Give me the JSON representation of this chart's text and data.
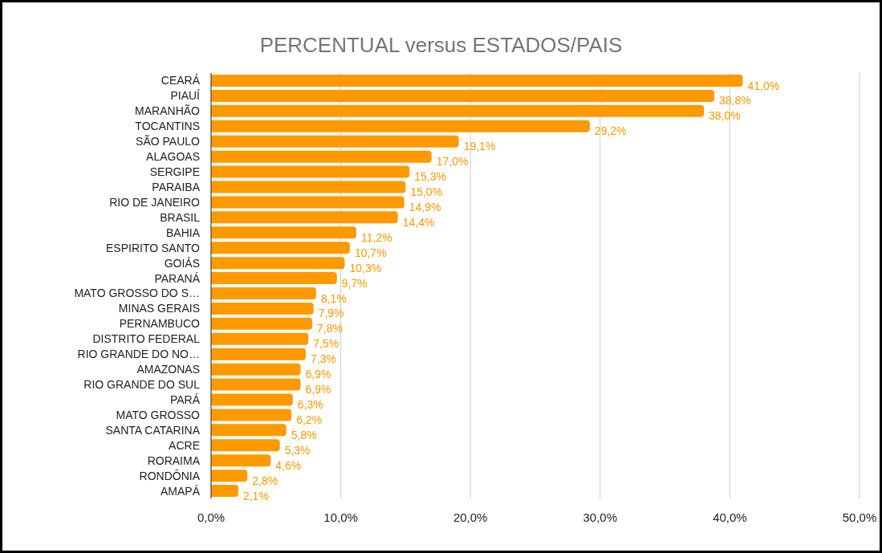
{
  "chart_data": {
    "type": "bar",
    "orientation": "horizontal",
    "title": "PERCENTUAL versus ESTADOS/PAIS",
    "categories": [
      "CEARÁ",
      "PIAUÍ",
      "MARANHÃO",
      "TOCANTINS",
      "SÃO PAULO",
      "ALAGOAS",
      "SERGIPE",
      "PARAIBA",
      "RIO DE JANEIRO",
      "BRASIL",
      "BAHIA",
      "ESPIRITO SANTO",
      "GOIÁS",
      "PARANÁ",
      "MATO GROSSO DO S…",
      "MINAS GERAIS",
      "PERNAMBUCO",
      "DISTRITO FEDERAL",
      "RIO GRANDE DO NO…",
      "AMAZONAS",
      "RIO GRANDE DO SUL",
      "PARÁ",
      "MATO GROSSO",
      "SANTA CATARINA",
      "ACRE",
      "RORAIMA",
      "RONDÔNIA",
      "AMAPÁ"
    ],
    "values": [
      41.0,
      38.8,
      38.0,
      29.2,
      19.1,
      17.0,
      15.3,
      15.0,
      14.9,
      14.4,
      11.2,
      10.7,
      10.3,
      9.7,
      8.1,
      7.9,
      7.8,
      7.5,
      7.3,
      6.9,
      6.9,
      6.3,
      6.2,
      5.8,
      5.3,
      4.6,
      2.8,
      2.1
    ],
    "value_labels": [
      "41,0%",
      "38,8%",
      "38,0%",
      "29,2%",
      "19,1%",
      "17,0%",
      "15,3%",
      "15,0%",
      "14,9%",
      "14,4%",
      "11,2%",
      "10,7%",
      "10,3%",
      "9,7%",
      "8,1%",
      "7,9%",
      "7,8%",
      "7,5%",
      "7,3%",
      "6,9%",
      "6,9%",
      "6,3%",
      "6,2%",
      "5,8%",
      "5,3%",
      "4,6%",
      "2,8%",
      "2,1%"
    ],
    "color": "#ff9900",
    "xlim": [
      0,
      50
    ],
    "xticks": [
      {
        "value": 0,
        "label": "0,0%"
      },
      {
        "value": 10,
        "label": "10,0%"
      },
      {
        "value": 20,
        "label": "20,0%"
      },
      {
        "value": 30,
        "label": "30,0%"
      },
      {
        "value": 40,
        "label": "40,0%"
      },
      {
        "value": 50,
        "label": "50,0%"
      }
    ],
    "grid": "x",
    "legend": false
  }
}
